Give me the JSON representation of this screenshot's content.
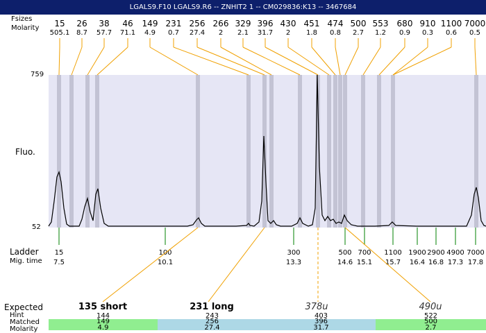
{
  "title": "LGALS9.F10  LGALS9.R6 -- ZNHIT2 1 -- CM029836:K13 -- 3467684",
  "labels": {
    "sizes": "Fsizes",
    "molarity": "Molarity",
    "fluo": "Fluo.",
    "ladder": "Ladder",
    "mig_time": "Mig. time",
    "expected": "Expected",
    "hint": "Hint",
    "matched": "Matched",
    "molarity_bottom": "Molarity",
    "y_top": "759",
    "y_bottom": "52"
  },
  "top_peaks": [
    {
      "size": "15",
      "molarity": "505.1"
    },
    {
      "size": "26",
      "molarity": "8.7"
    },
    {
      "size": "38",
      "molarity": "57.7"
    },
    {
      "size": "46",
      "molarity": "71.1"
    },
    {
      "size": "149",
      "molarity": "4.9"
    },
    {
      "size": "231",
      "molarity": "0.7"
    },
    {
      "size": "256",
      "molarity": "27.4"
    },
    {
      "size": "266",
      "molarity": "2"
    },
    {
      "size": "329",
      "molarity": "2.1"
    },
    {
      "size": "396",
      "molarity": "31.7"
    },
    {
      "size": "430",
      "molarity": "2"
    },
    {
      "size": "451",
      "molarity": "1.8"
    },
    {
      "size": "474",
      "molarity": "0.8"
    },
    {
      "size": "500",
      "molarity": "2.7"
    },
    {
      "size": "553",
      "molarity": "1.2"
    },
    {
      "size": "680",
      "molarity": "0.9"
    },
    {
      "size": "910",
      "molarity": "0.3"
    },
    {
      "size": "1100",
      "molarity": "0.6"
    },
    {
      "size": "7000",
      "molarity": "0.5"
    }
  ],
  "ladder": [
    {
      "size": "15",
      "time": "7.5"
    },
    {
      "size": "100",
      "time": "10.1"
    },
    {
      "size": "300",
      "time": "13.3"
    },
    {
      "size": "500",
      "time": "14.6"
    },
    {
      "size": "700",
      "time": "15.1"
    },
    {
      "size": "1100",
      "time": "15.7"
    },
    {
      "size": "1900",
      "time": "16.4"
    },
    {
      "size": "2900",
      "time": "16.8"
    },
    {
      "size": "4900",
      "time": "17.3"
    },
    {
      "size": "7000",
      "time": "17.8"
    }
  ],
  "expected": [
    {
      "label": "135 short",
      "style": "bold"
    },
    {
      "label": "231 long",
      "style": "bold"
    },
    {
      "label": "378u",
      "style": "italic"
    },
    {
      "label": "490u",
      "style": "italic"
    }
  ],
  "segments": [
    {
      "hint": "144",
      "matched": "149",
      "molarity": "4.9",
      "color": "#90ee90"
    },
    {
      "hint": "243",
      "matched": "256",
      "molarity": "27.4",
      "color": "#add8e6"
    },
    {
      "hint": "403",
      "matched": "396",
      "molarity": "31.7",
      "color": "#add8e6"
    },
    {
      "hint": "522",
      "matched": "500",
      "molarity": "2.7",
      "color": "#90ee90"
    }
  ],
  "colors": {
    "title_bg": "#0d1f6b",
    "plot_bg": "#e6e6f5",
    "band": "#c3c3d4",
    "connector": "#f0a000",
    "ladder_tick": "#008000",
    "green": "#90ee90",
    "blue": "#add8e6"
  }
}
